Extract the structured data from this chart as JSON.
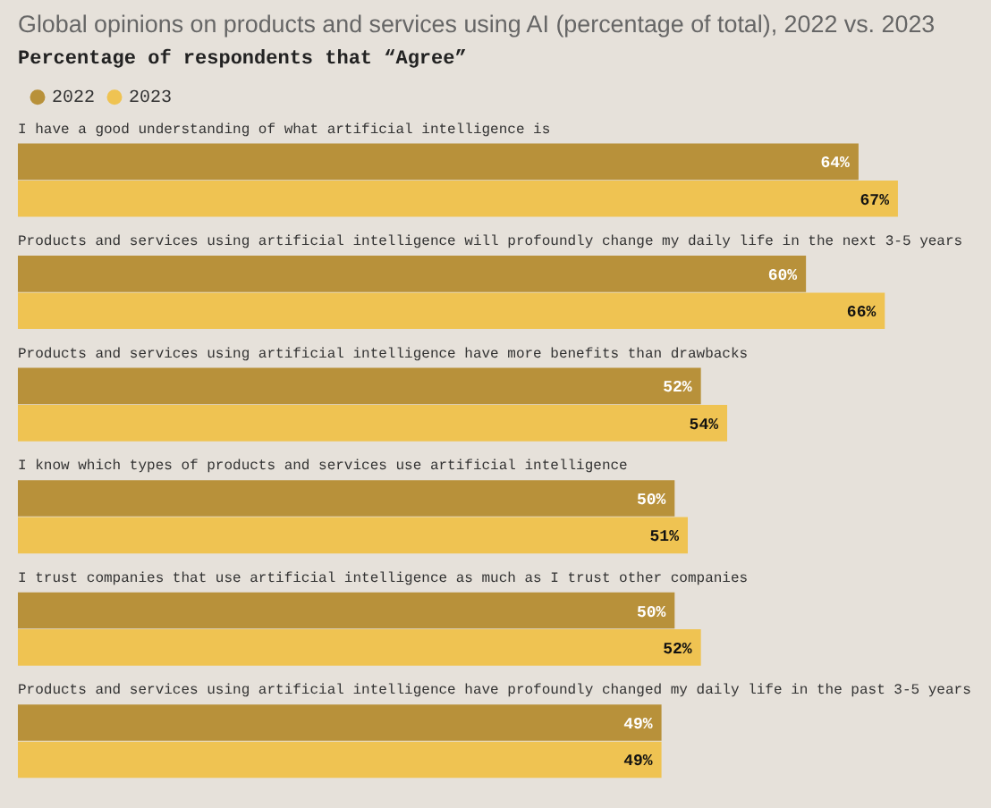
{
  "chart_data": {
    "type": "bar",
    "orientation": "horizontal",
    "title": "Global opinions on products and services using AI (percentage of total), 2022 vs. 2023",
    "subtitle": "Percentage of respondents that “Agree”",
    "legend": "top left",
    "categories": [
      "I have a good understanding of what artificial intelligence is",
      "Products and services using artificial intelligence will profoundly change my daily life in the next 3-5 years",
      "Products and services using artificial intelligence have more benefits than drawbacks",
      "I know which types of products and services use artificial intelligence",
      "I trust companies that use artificial intelligence as much as I trust other companies",
      "Products and services using artificial intelligence have profoundly changed my daily life in the past 3-5 years"
    ],
    "series": [
      {
        "name": "2022",
        "color": "#b8913a",
        "values": [
          64,
          60,
          52,
          50,
          50,
          49
        ],
        "value_labels": [
          "64%",
          "60%",
          "52%",
          "50%",
          "50%",
          "49%"
        ]
      },
      {
        "name": "2023",
        "color": "#efc352",
        "values": [
          67,
          66,
          54,
          51,
          52,
          49
        ],
        "value_labels": [
          "67%",
          "66%",
          "54%",
          "51%",
          "52%",
          "49%"
        ]
      }
    ]
  }
}
